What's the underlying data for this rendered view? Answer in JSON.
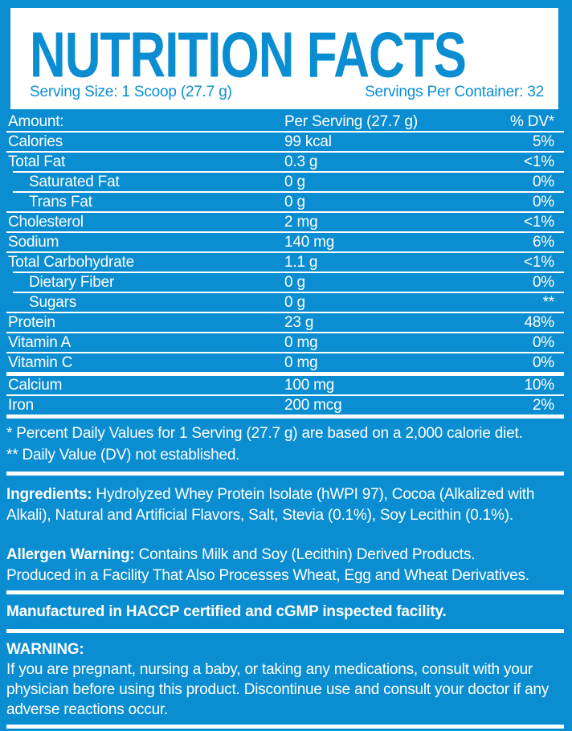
{
  "colors": {
    "blue": "#0b8ed1",
    "white": "#ffffff"
  },
  "header": {
    "title": "NUTRITION FACTS",
    "serving_size": "Serving Size: 1 Scoop (27.7 g)",
    "servings_per_container": "Servings Per Container: 32"
  },
  "table": {
    "header": {
      "label": "Amount:",
      "value": "Per Serving (27.7 g)",
      "dv": "% DV*"
    },
    "rows": [
      {
        "label": "Calories",
        "value": "99 kcal",
        "dv": "5%",
        "indent": false,
        "divider": "thin",
        "divider_indent": false
      },
      {
        "label": "Total Fat",
        "value": "0.3 g",
        "dv": "<1%",
        "indent": false,
        "divider": "thin",
        "divider_indent": true
      },
      {
        "label": "Saturated Fat",
        "value": "0 g",
        "dv": "0%",
        "indent": true,
        "divider": "thin",
        "divider_indent": true
      },
      {
        "label": "Trans Fat",
        "value": "0 g",
        "dv": "0%",
        "indent": true,
        "divider": "thin",
        "divider_indent": false
      },
      {
        "label": "Cholesterol",
        "value": "2 mg",
        "dv": "<1%",
        "indent": false,
        "divider": "thin",
        "divider_indent": false
      },
      {
        "label": "Sodium",
        "value": "140 mg",
        "dv": "6%",
        "indent": false,
        "divider": "thin",
        "divider_indent": false
      },
      {
        "label": "Total Carbohydrate",
        "value": "1.1 g",
        "dv": "<1%",
        "indent": false,
        "divider": "thin",
        "divider_indent": true
      },
      {
        "label": "Dietary Fiber",
        "value": "0 g",
        "dv": "0%",
        "indent": true,
        "divider": "thin",
        "divider_indent": true
      },
      {
        "label": "Sugars",
        "value": "0 g",
        "dv": "**",
        "indent": true,
        "divider": "thin",
        "divider_indent": false
      },
      {
        "label": "Protein",
        "value": "23 g",
        "dv": "48%",
        "indent": false,
        "divider": "thin",
        "divider_indent": false
      },
      {
        "label": "Vitamin A",
        "value": "0 mg",
        "dv": "0%",
        "indent": false,
        "divider": "thin",
        "divider_indent": false
      },
      {
        "label": "Vitamin C",
        "value": "0 mg",
        "dv": "0%",
        "indent": false,
        "divider": "thick",
        "divider_indent": false
      },
      {
        "label": "Calcium",
        "value": "100 mg",
        "dv": "10%",
        "indent": false,
        "divider": "thin",
        "divider_indent": false
      },
      {
        "label": "Iron",
        "value": "200 mcg",
        "dv": "2%",
        "indent": false,
        "divider": "thick",
        "divider_indent": false
      }
    ]
  },
  "footnotes": {
    "dv_note": "* Percent Daily Values for 1 Serving (27.7 g) are based on a 2,000 calorie diet.",
    "not_established_note": "** Daily Value (DV) not established."
  },
  "ingredients": {
    "label": "Ingredients:",
    "text": " Hydrolyzed Whey Protein Isolate (hWPI 97), Cocoa (Alkalized with Alkali), Natural and Artificial Flavors, Salt, Stevia (0.1%), Soy Lecithin (0.1%)."
  },
  "allergen": {
    "label": "Allergen Warning:",
    "text": " Contains Milk and Soy (Lecithin) Derived Products.\nProduced in a Facility That Also Processes Wheat, Egg and Wheat Derivatives."
  },
  "manufactured": "Manufactured in HACCP certified and cGMP inspected facility.",
  "warning": {
    "label": "WARNING:",
    "text": "If you are pregnant, nursing a baby, or taking any medications, consult with your physician before using this product. Discontinue use and consult your doctor if any adverse reactions occur."
  }
}
